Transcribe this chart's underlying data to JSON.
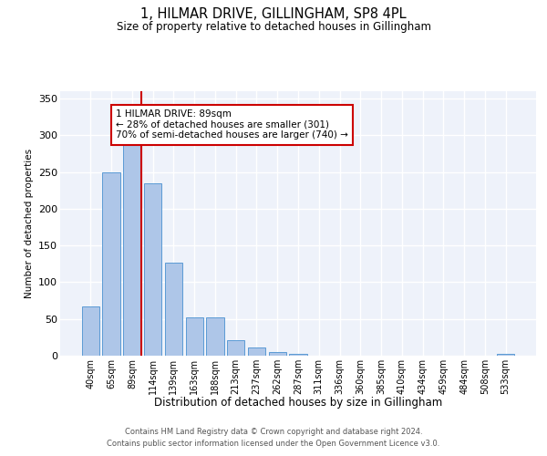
{
  "title": "1, HILMAR DRIVE, GILLINGHAM, SP8 4PL",
  "subtitle": "Size of property relative to detached houses in Gillingham",
  "xlabel": "Distribution of detached houses by size in Gillingham",
  "ylabel": "Number of detached properties",
  "categories": [
    "40sqm",
    "65sqm",
    "89sqm",
    "114sqm",
    "139sqm",
    "163sqm",
    "188sqm",
    "213sqm",
    "237sqm",
    "262sqm",
    "287sqm",
    "311sqm",
    "336sqm",
    "360sqm",
    "385sqm",
    "410sqm",
    "434sqm",
    "459sqm",
    "484sqm",
    "508sqm",
    "533sqm"
  ],
  "values": [
    67,
    250,
    287,
    235,
    127,
    52,
    52,
    21,
    11,
    5,
    2,
    0,
    0,
    0,
    0,
    0,
    0,
    0,
    0,
    0,
    2
  ],
  "bar_color": "#aec6e8",
  "bar_edge_color": "#5b9bd5",
  "property_line_index": 2,
  "property_line_color": "#cc0000",
  "annotation_text": "1 HILMAR DRIVE: 89sqm\n← 28% of detached houses are smaller (301)\n70% of semi-detached houses are larger (740) →",
  "annotation_box_color": "#cc0000",
  "ylim": [
    0,
    360
  ],
  "yticks": [
    0,
    50,
    100,
    150,
    200,
    250,
    300,
    350
  ],
  "background_color": "#eef2fa",
  "grid_color": "#ffffff",
  "footer_line1": "Contains HM Land Registry data © Crown copyright and database right 2024.",
  "footer_line2": "Contains public sector information licensed under the Open Government Licence v3.0."
}
